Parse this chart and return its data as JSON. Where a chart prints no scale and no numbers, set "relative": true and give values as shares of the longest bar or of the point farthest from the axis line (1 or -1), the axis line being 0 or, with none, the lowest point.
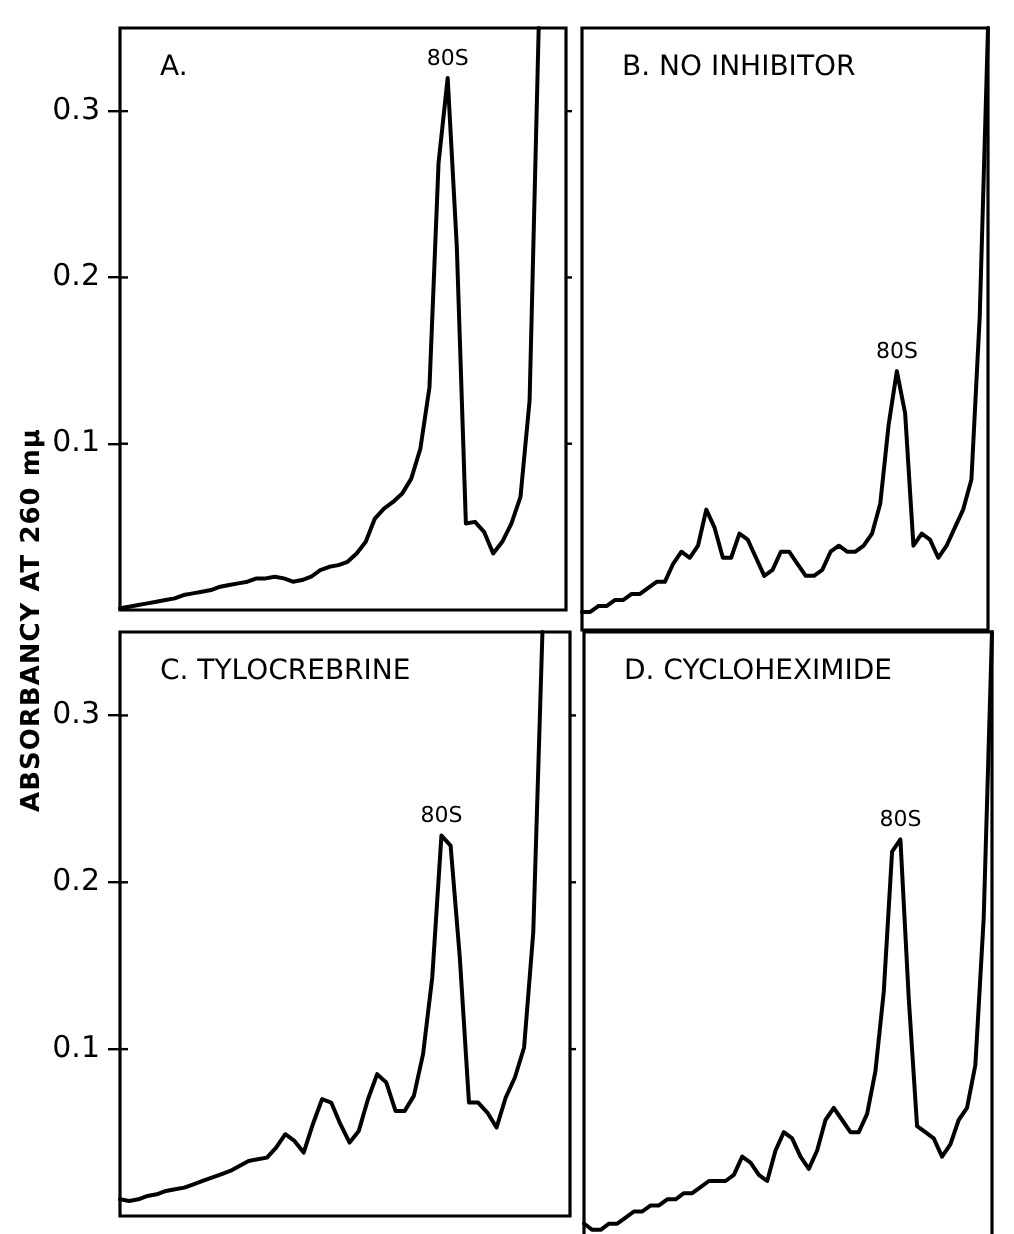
{
  "chart_data": [
    {
      "type": "line",
      "title": "A.",
      "ylabel": "ABSORBANCY AT 260 mμ",
      "categories": [
        null,
        null,
        null,
        null,
        null,
        null,
        null,
        null,
        null,
        null,
        null,
        null,
        null,
        null,
        null,
        null,
        null,
        null,
        null,
        null,
        null,
        null,
        null,
        null,
        null,
        null,
        null,
        null,
        null,
        null,
        null,
        null,
        null,
        null,
        null,
        null,
        null,
        null,
        null,
        null,
        null,
        null,
        null,
        null,
        null,
        null,
        null,
        null,
        null,
        null
      ],
      "series": [
        {
          "color": "#000000",
          "values": [
            0.001,
            0.002,
            0.003,
            0.004,
            0.005,
            0.006,
            0.007,
            0.009,
            0.01,
            0.011,
            0.012,
            0.014,
            0.015,
            0.016,
            0.017,
            0.019,
            0.019,
            0.02,
            0.019,
            0.017,
            0.018,
            0.02,
            0.024,
            0.026,
            0.027,
            0.029,
            0.034,
            0.041,
            0.055,
            0.061,
            0.065,
            0.07,
            0.079,
            0.097,
            0.134,
            0.269,
            0.32,
            0.219,
            0.052,
            0.053,
            0.047,
            0.034,
            0.041,
            0.052,
            0.068,
            0.126,
            0.35,
            null,
            null,
            null
          ]
        }
      ],
      "ylim": [
        0,
        0.35
      ],
      "yticks": [
        0.1,
        0.2,
        0.3
      ],
      "tick_labels": "y",
      "grid": false,
      "legend": false,
      "marker": "none",
      "annotations": [
        {
          "text": "80S",
          "y": 0.32
        }
      ]
    },
    {
      "type": "line",
      "title": "B. NO INHIBITOR",
      "categories": [
        null,
        null,
        null,
        null,
        null,
        null,
        null,
        null,
        null,
        null,
        null,
        null,
        null,
        null,
        null,
        null,
        null,
        null,
        null,
        null,
        null,
        null,
        null,
        null,
        null,
        null,
        null,
        null,
        null,
        null,
        null,
        null,
        null,
        null,
        null,
        null,
        null,
        null,
        null,
        null,
        null,
        null,
        null,
        null,
        null,
        null,
        null,
        null,
        null,
        null
      ],
      "series": [
        {
          "color": "#000000",
          "values": [
            0.03,
            0.03,
            0.04,
            0.04,
            0.05,
            0.05,
            0.06,
            0.06,
            0.07,
            0.08,
            0.08,
            0.11,
            0.13,
            0.12,
            0.14,
            0.2,
            0.17,
            0.12,
            0.12,
            0.16,
            0.15,
            0.12,
            0.09,
            0.1,
            0.13,
            0.13,
            0.11,
            0.09,
            0.09,
            0.1,
            0.13,
            0.14,
            0.13,
            0.13,
            0.14,
            0.16,
            0.21,
            0.34,
            0.43,
            0.36,
            0.14,
            0.16,
            0.15,
            0.12,
            0.14,
            0.17,
            0.2,
            0.25,
            0.52,
            1
          ]
        }
      ],
      "relative": true,
      "tick_labels": false,
      "grid": false,
      "legend": false,
      "marker": "none",
      "annotations": [
        {
          "text": "80S",
          "y": 0.43
        }
      ]
    },
    {
      "type": "line",
      "title": "C. TYLOCREBRINE",
      "categories": [
        null,
        null,
        null,
        null,
        null,
        null,
        null,
        null,
        null,
        null,
        null,
        null,
        null,
        null,
        null,
        null,
        null,
        null,
        null,
        null,
        null,
        null,
        null,
        null,
        null,
        null,
        null,
        null,
        null,
        null,
        null,
        null,
        null,
        null,
        null,
        null,
        null,
        null,
        null,
        null,
        null,
        null,
        null,
        null,
        null,
        null,
        null,
        null,
        null,
        null
      ],
      "series": [
        {
          "color": "#000000",
          "values": [
            0.01,
            0.009,
            0.01,
            0.012,
            0.013,
            0.015,
            0.016,
            0.017,
            0.019,
            0.021,
            0.023,
            0.025,
            0.027,
            0.03,
            0.033,
            0.034,
            0.035,
            0.041,
            0.049,
            0.045,
            0.038,
            0.055,
            0.07,
            0.068,
            0.055,
            0.044,
            0.051,
            0.07,
            0.085,
            0.08,
            0.063,
            0.063,
            0.072,
            0.097,
            0.143,
            0.228,
            0.222,
            0.155,
            0.068,
            0.068,
            0.062,
            0.053,
            0.071,
            0.083,
            0.101,
            0.17,
            0.35,
            null,
            null,
            null
          ]
        }
      ],
      "ylim": [
        0,
        0.35
      ],
      "yticks": [
        0.1,
        0.2,
        0.3
      ],
      "tick_labels": "y",
      "grid": false,
      "legend": false,
      "marker": "none",
      "annotations": [
        {
          "text": "80S",
          "y": 0.228
        }
      ]
    },
    {
      "type": "line",
      "title": "D. CYCLOHEXIMIDE",
      "categories": [
        null,
        null,
        null,
        null,
        null,
        null,
        null,
        null,
        null,
        null,
        null,
        null,
        null,
        null,
        null,
        null,
        null,
        null,
        null,
        null,
        null,
        null,
        null,
        null,
        null,
        null,
        null,
        null,
        null,
        null,
        null,
        null,
        null,
        null,
        null,
        null,
        null,
        null,
        null,
        null,
        null,
        null,
        null,
        null,
        null,
        null,
        null,
        null,
        null,
        null
      ],
      "series": [
        {
          "color": "#000000",
          "values": [
            0.03,
            0.02,
            0.02,
            0.03,
            0.03,
            0.04,
            0.05,
            0.05,
            0.06,
            0.06,
            0.07,
            0.07,
            0.08,
            0.08,
            0.09,
            0.1,
            0.1,
            0.1,
            0.11,
            0.14,
            0.13,
            0.11,
            0.1,
            0.15,
            0.18,
            0.17,
            0.14,
            0.12,
            0.15,
            0.2,
            0.22,
            0.2,
            0.18,
            0.18,
            0.21,
            0.28,
            0.41,
            0.64,
            0.66,
            0.4,
            0.19,
            0.18,
            0.17,
            0.14,
            0.16,
            0.2,
            0.22,
            0.29,
            0.53,
            1
          ]
        }
      ],
      "relative": true,
      "tick_labels": false,
      "grid": false,
      "legend": false,
      "marker": "none",
      "annotations": [
        {
          "text": "80S",
          "y": 0.66
        }
      ]
    }
  ]
}
